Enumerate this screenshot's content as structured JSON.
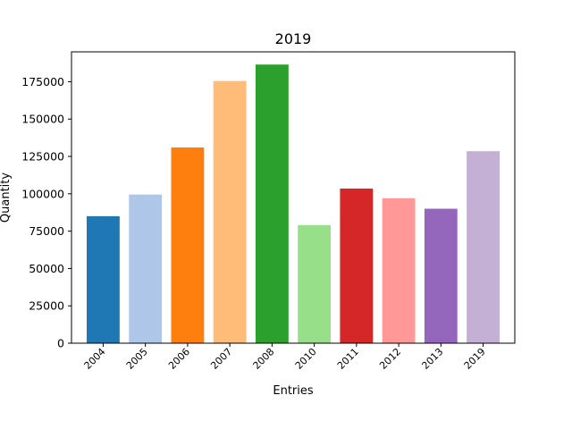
{
  "chart_data": {
    "type": "bar",
    "title": "2019",
    "xlabel": "Entries",
    "ylabel": "Quantity",
    "categories": [
      "2004",
      "2005",
      "2006",
      "2007",
      "2008",
      "2010",
      "2011",
      "2012",
      "2013",
      "2019"
    ],
    "values": [
      85000,
      99500,
      131000,
      175500,
      186500,
      79000,
      103500,
      97000,
      90000,
      128500
    ],
    "colors": [
      "#1f77b4",
      "#aec7e8",
      "#ff7f0e",
      "#ffbb78",
      "#2ca02c",
      "#98df8a",
      "#d62728",
      "#ff9896",
      "#9467bd",
      "#c5b0d5"
    ],
    "ylim": [
      0,
      195000
    ],
    "yticks": [
      0,
      25000,
      50000,
      75000,
      100000,
      125000,
      150000,
      175000
    ],
    "ytick_labels": [
      "0",
      "25000",
      "50000",
      "75000",
      "100000",
      "125000",
      "150000",
      "175000"
    ],
    "grid": false,
    "legend": "none"
  }
}
